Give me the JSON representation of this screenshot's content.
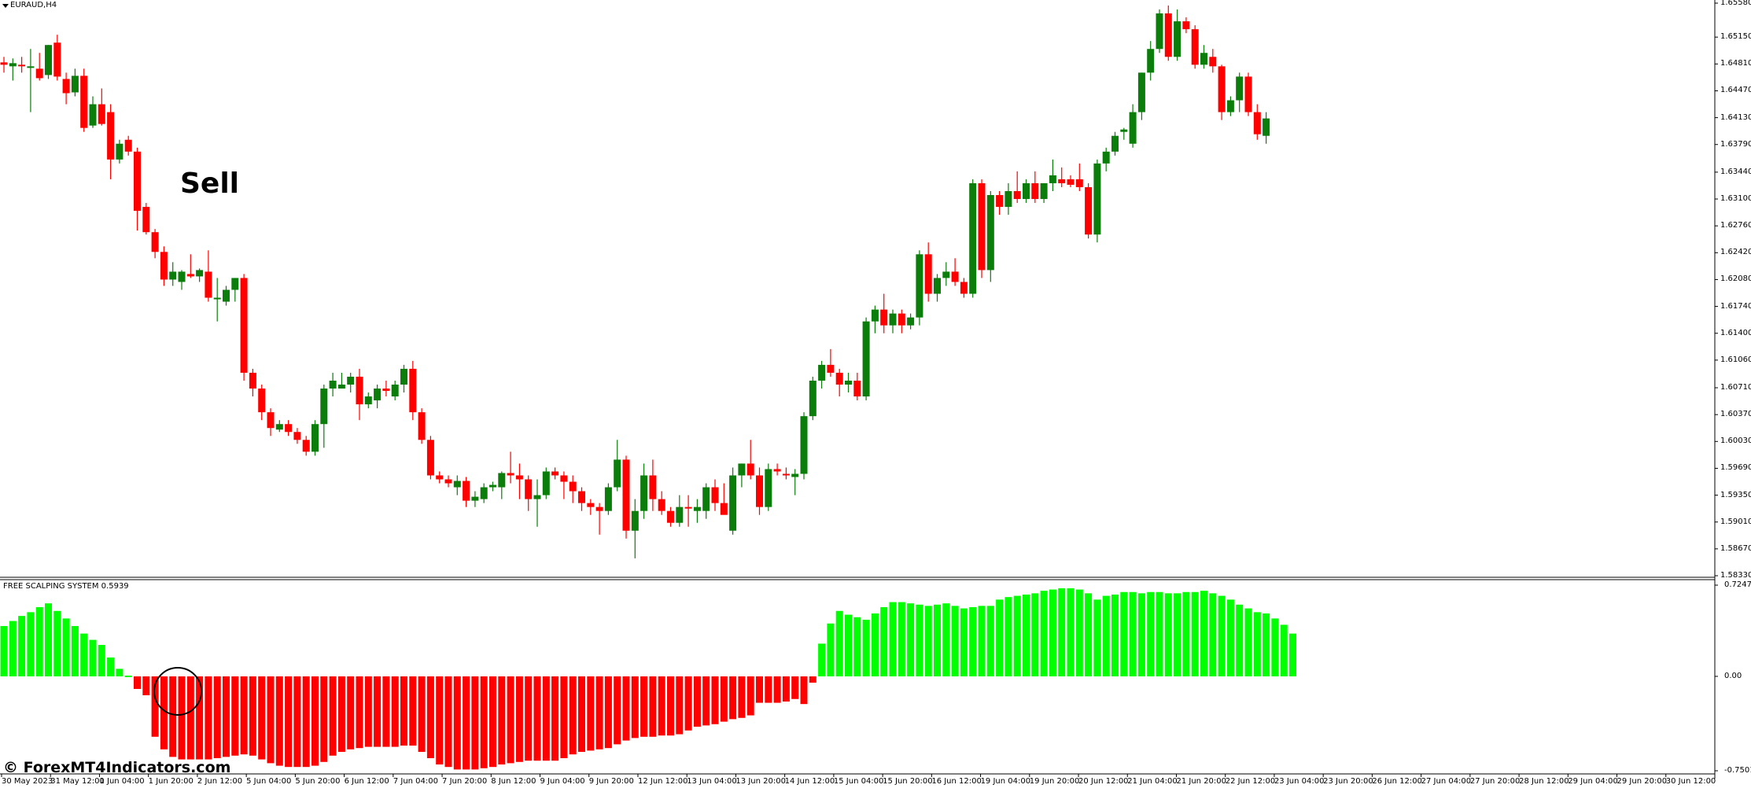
{
  "window": {
    "symbol_title": "EURAUD,H4",
    "indicator_title": "FREE SCALPING SYSTEM 0.5939"
  },
  "annotations": {
    "signal_label": "Sell",
    "watermark": "© ForexMT4Indicators.com"
  },
  "colors": {
    "bull": "#0b7d0b",
    "bear": "#ff0000",
    "osc_positive": "#00ff00",
    "osc_negative": "#ff0000",
    "axis": "#000000",
    "background": "#ffffff"
  },
  "price_axis": {
    "labels": [
      "1.65580",
      "1.65150",
      "1.64810",
      "1.64470",
      "1.64130",
      "1.63790",
      "1.63440",
      "1.63100",
      "1.62760",
      "1.62420",
      "1.62080",
      "1.61740",
      "1.61400",
      "1.61060",
      "1.60710",
      "1.60370",
      "1.60030",
      "1.59690",
      "1.59350",
      "1.59010",
      "1.58670",
      "1.58330"
    ],
    "min": 1.5833,
    "max": 1.6558
  },
  "osc_axis": {
    "labels": [
      "0.7247",
      "0.00",
      "-0.7501"
    ],
    "max": 0.7247,
    "min": -0.7501
  },
  "time_axis": {
    "labels": [
      "30 May 2023",
      "31 May 12:00",
      "1 Jun 04:00",
      "1 Jun 20:00",
      "2 Jun 12:00",
      "5 Jun 04:00",
      "5 Jun 20:00",
      "6 Jun 12:00",
      "7 Jun 04:00",
      "7 Jun 20:00",
      "8 Jun 12:00",
      "9 Jun 04:00",
      "9 Jun 20:00",
      "12 Jun 12:00",
      "13 Jun 04:00",
      "13 Jun 20:00",
      "14 Jun 12:00",
      "15 Jun 04:00",
      "15 Jun 20:00",
      "16 Jun 12:00",
      "19 Jun 04:00",
      "19 Jun 20:00",
      "20 Jun 12:00",
      "21 Jun 04:00",
      "21 Jun 20:00",
      "22 Jun 12:00",
      "23 Jun 04:00",
      "23 Jun 20:00",
      "26 Jun 12:00",
      "27 Jun 04:00",
      "27 Jun 20:00",
      "28 Jun 12:00",
      "29 Jun 04:00",
      "29 Jun 20:00",
      "30 Jun 12:00"
    ]
  },
  "chart_data": [
    {
      "type": "candlestick",
      "title": "EURAUD,H4",
      "ylim": [
        1.5833,
        1.6558
      ],
      "candles": [
        {
          "o": 1.6483,
          "h": 1.649,
          "l": 1.647,
          "c": 1.648
        },
        {
          "o": 1.6478,
          "h": 1.6488,
          "l": 1.646,
          "c": 1.6482
        },
        {
          "o": 1.648,
          "h": 1.649,
          "l": 1.647,
          "c": 1.6478
        },
        {
          "o": 1.6478,
          "h": 1.65,
          "l": 1.642,
          "c": 1.6478
        },
        {
          "o": 1.6475,
          "h": 1.6495,
          "l": 1.646,
          "c": 1.6463
        },
        {
          "o": 1.6467,
          "h": 1.6505,
          "l": 1.6462,
          "c": 1.6505
        },
        {
          "o": 1.6508,
          "h": 1.6518,
          "l": 1.646,
          "c": 1.6465
        },
        {
          "o": 1.6462,
          "h": 1.647,
          "l": 1.643,
          "c": 1.6444
        },
        {
          "o": 1.6445,
          "h": 1.6475,
          "l": 1.644,
          "c": 1.6466
        },
        {
          "o": 1.6466,
          "h": 1.6475,
          "l": 1.6395,
          "c": 1.64
        },
        {
          "o": 1.6403,
          "h": 1.644,
          "l": 1.64,
          "c": 1.643
        },
        {
          "o": 1.643,
          "h": 1.645,
          "l": 1.6403,
          "c": 1.6405
        },
        {
          "o": 1.642,
          "h": 1.643,
          "l": 1.6335,
          "c": 1.636
        },
        {
          "o": 1.636,
          "h": 1.6385,
          "l": 1.6355,
          "c": 1.638
        },
        {
          "o": 1.6385,
          "h": 1.639,
          "l": 1.6365,
          "c": 1.637
        },
        {
          "o": 1.637,
          "h": 1.6375,
          "l": 1.627,
          "c": 1.6295
        },
        {
          "o": 1.63,
          "h": 1.6305,
          "l": 1.6265,
          "c": 1.6268
        },
        {
          "o": 1.6268,
          "h": 1.6272,
          "l": 1.6235,
          "c": 1.6243
        },
        {
          "o": 1.6243,
          "h": 1.625,
          "l": 1.62,
          "c": 1.6208
        },
        {
          "o": 1.6208,
          "h": 1.623,
          "l": 1.62,
          "c": 1.6218
        },
        {
          "o": 1.6205,
          "h": 1.622,
          "l": 1.6195,
          "c": 1.6218
        },
        {
          "o": 1.6215,
          "h": 1.624,
          "l": 1.621,
          "c": 1.6212
        },
        {
          "o": 1.6212,
          "h": 1.6222,
          "l": 1.6205,
          "c": 1.622
        },
        {
          "o": 1.6218,
          "h": 1.6245,
          "l": 1.618,
          "c": 1.6185
        },
        {
          "o": 1.6185,
          "h": 1.621,
          "l": 1.6155,
          "c": 1.6185
        },
        {
          "o": 1.618,
          "h": 1.62,
          "l": 1.6175,
          "c": 1.6195
        },
        {
          "o": 1.6195,
          "h": 1.621,
          "l": 1.618,
          "c": 1.621
        },
        {
          "o": 1.621,
          "h": 1.6215,
          "l": 1.608,
          "c": 1.609
        },
        {
          "o": 1.609,
          "h": 1.6095,
          "l": 1.606,
          "c": 1.607
        },
        {
          "o": 1.607,
          "h": 1.6075,
          "l": 1.603,
          "c": 1.604
        },
        {
          "o": 1.604,
          "h": 1.6045,
          "l": 1.601,
          "c": 1.602
        },
        {
          "o": 1.6018,
          "h": 1.603,
          "l": 1.6015,
          "c": 1.6025
        },
        {
          "o": 1.6025,
          "h": 1.603,
          "l": 1.601,
          "c": 1.6015
        },
        {
          "o": 1.6015,
          "h": 1.602,
          "l": 1.6,
          "c": 1.6005
        },
        {
          "o": 1.6005,
          "h": 1.601,
          "l": 1.5985,
          "c": 1.599
        },
        {
          "o": 1.599,
          "h": 1.603,
          "l": 1.5985,
          "c": 1.6025
        },
        {
          "o": 1.6025,
          "h": 1.6075,
          "l": 1.5995,
          "c": 1.607
        },
        {
          "o": 1.607,
          "h": 1.609,
          "l": 1.606,
          "c": 1.608
        },
        {
          "o": 1.607,
          "h": 1.609,
          "l": 1.607,
          "c": 1.6075
        },
        {
          "o": 1.6075,
          "h": 1.609,
          "l": 1.6065,
          "c": 1.6085
        },
        {
          "o": 1.6085,
          "h": 1.6095,
          "l": 1.603,
          "c": 1.605
        },
        {
          "o": 1.605,
          "h": 1.6065,
          "l": 1.6045,
          "c": 1.606
        },
        {
          "o": 1.6055,
          "h": 1.6075,
          "l": 1.6045,
          "c": 1.607
        },
        {
          "o": 1.607,
          "h": 1.608,
          "l": 1.606,
          "c": 1.6067
        },
        {
          "o": 1.606,
          "h": 1.608,
          "l": 1.6055,
          "c": 1.6075
        },
        {
          "o": 1.6075,
          "h": 1.61,
          "l": 1.6065,
          "c": 1.6095
        },
        {
          "o": 1.6095,
          "h": 1.6105,
          "l": 1.603,
          "c": 1.604
        },
        {
          "o": 1.604,
          "h": 1.6045,
          "l": 1.6,
          "c": 1.6005
        },
        {
          "o": 1.6005,
          "h": 1.601,
          "l": 1.5955,
          "c": 1.596
        },
        {
          "o": 1.596,
          "h": 1.5965,
          "l": 1.595,
          "c": 1.5955
        },
        {
          "o": 1.5955,
          "h": 1.596,
          "l": 1.5945,
          "c": 1.595
        },
        {
          "o": 1.5945,
          "h": 1.596,
          "l": 1.5935,
          "c": 1.5953
        },
        {
          "o": 1.5953,
          "h": 1.5958,
          "l": 1.592,
          "c": 1.5928
        },
        {
          "o": 1.5928,
          "h": 1.594,
          "l": 1.592,
          "c": 1.5933
        },
        {
          "o": 1.593,
          "h": 1.595,
          "l": 1.5925,
          "c": 1.5945
        },
        {
          "o": 1.5945,
          "h": 1.5952,
          "l": 1.594,
          "c": 1.5948
        },
        {
          "o": 1.5945,
          "h": 1.5965,
          "l": 1.593,
          "c": 1.5963
        },
        {
          "o": 1.5963,
          "h": 1.599,
          "l": 1.595,
          "c": 1.596
        },
        {
          "o": 1.596,
          "h": 1.5975,
          "l": 1.593,
          "c": 1.5955
        },
        {
          "o": 1.5955,
          "h": 1.596,
          "l": 1.5915,
          "c": 1.593
        },
        {
          "o": 1.593,
          "h": 1.5955,
          "l": 1.5895,
          "c": 1.5935
        },
        {
          "o": 1.5935,
          "h": 1.597,
          "l": 1.593,
          "c": 1.5965
        },
        {
          "o": 1.5965,
          "h": 1.597,
          "l": 1.5955,
          "c": 1.596
        },
        {
          "o": 1.596,
          "h": 1.5965,
          "l": 1.593,
          "c": 1.5952
        },
        {
          "o": 1.5952,
          "h": 1.596,
          "l": 1.5925,
          "c": 1.594
        },
        {
          "o": 1.594,
          "h": 1.5945,
          "l": 1.5915,
          "c": 1.5925
        },
        {
          "o": 1.5925,
          "h": 1.593,
          "l": 1.591,
          "c": 1.592
        },
        {
          "o": 1.592,
          "h": 1.5925,
          "l": 1.5885,
          "c": 1.5915
        },
        {
          "o": 1.5915,
          "h": 1.595,
          "l": 1.591,
          "c": 1.5945
        },
        {
          "o": 1.5945,
          "h": 1.6005,
          "l": 1.594,
          "c": 1.598
        },
        {
          "o": 1.598,
          "h": 1.5985,
          "l": 1.588,
          "c": 1.589
        },
        {
          "o": 1.589,
          "h": 1.593,
          "l": 1.5855,
          "c": 1.5915
        },
        {
          "o": 1.5915,
          "h": 1.5975,
          "l": 1.5905,
          "c": 1.596
        },
        {
          "o": 1.596,
          "h": 1.598,
          "l": 1.5915,
          "c": 1.593
        },
        {
          "o": 1.593,
          "h": 1.594,
          "l": 1.591,
          "c": 1.5915
        },
        {
          "o": 1.5915,
          "h": 1.592,
          "l": 1.5895,
          "c": 1.59
        },
        {
          "o": 1.59,
          "h": 1.5935,
          "l": 1.5895,
          "c": 1.592
        },
        {
          "o": 1.592,
          "h": 1.5935,
          "l": 1.5895,
          "c": 1.5918
        },
        {
          "o": 1.5915,
          "h": 1.593,
          "l": 1.59,
          "c": 1.592
        },
        {
          "o": 1.5915,
          "h": 1.595,
          "l": 1.5905,
          "c": 1.5945
        },
        {
          "o": 1.5945,
          "h": 1.5955,
          "l": 1.5915,
          "c": 1.5925
        },
        {
          "o": 1.5925,
          "h": 1.595,
          "l": 1.5915,
          "c": 1.591
        },
        {
          "o": 1.589,
          "h": 1.597,
          "l": 1.5885,
          "c": 1.596
        },
        {
          "o": 1.596,
          "h": 1.5975,
          "l": 1.5945,
          "c": 1.5975
        },
        {
          "o": 1.5975,
          "h": 1.6005,
          "l": 1.5955,
          "c": 1.596
        },
        {
          "o": 1.596,
          "h": 1.597,
          "l": 1.591,
          "c": 1.592
        },
        {
          "o": 1.592,
          "h": 1.5975,
          "l": 1.5915,
          "c": 1.5968
        },
        {
          "o": 1.5968,
          "h": 1.5975,
          "l": 1.596,
          "c": 1.5965
        },
        {
          "o": 1.5962,
          "h": 1.597,
          "l": 1.5955,
          "c": 1.596
        },
        {
          "o": 1.5958,
          "h": 1.5968,
          "l": 1.5935,
          "c": 1.5962
        },
        {
          "o": 1.5962,
          "h": 1.604,
          "l": 1.5955,
          "c": 1.6035
        },
        {
          "o": 1.6035,
          "h": 1.6085,
          "l": 1.603,
          "c": 1.608
        },
        {
          "o": 1.608,
          "h": 1.6105,
          "l": 1.607,
          "c": 1.61
        },
        {
          "o": 1.61,
          "h": 1.612,
          "l": 1.6085,
          "c": 1.609
        },
        {
          "o": 1.609,
          "h": 1.6095,
          "l": 1.606,
          "c": 1.6075
        },
        {
          "o": 1.6075,
          "h": 1.609,
          "l": 1.6065,
          "c": 1.608
        },
        {
          "o": 1.608,
          "h": 1.609,
          "l": 1.6055,
          "c": 1.606
        },
        {
          "o": 1.606,
          "h": 1.616,
          "l": 1.6055,
          "c": 1.6155
        },
        {
          "o": 1.6155,
          "h": 1.6175,
          "l": 1.614,
          "c": 1.617
        },
        {
          "o": 1.617,
          "h": 1.619,
          "l": 1.614,
          "c": 1.615
        },
        {
          "o": 1.615,
          "h": 1.617,
          "l": 1.614,
          "c": 1.6165
        },
        {
          "o": 1.6165,
          "h": 1.617,
          "l": 1.614,
          "c": 1.615
        },
        {
          "o": 1.615,
          "h": 1.6165,
          "l": 1.6145,
          "c": 1.616
        },
        {
          "o": 1.616,
          "h": 1.6245,
          "l": 1.615,
          "c": 1.624
        },
        {
          "o": 1.624,
          "h": 1.6255,
          "l": 1.618,
          "c": 1.619
        },
        {
          "o": 1.619,
          "h": 1.6215,
          "l": 1.618,
          "c": 1.621
        },
        {
          "o": 1.621,
          "h": 1.623,
          "l": 1.62,
          "c": 1.6218
        },
        {
          "o": 1.6218,
          "h": 1.6235,
          "l": 1.62,
          "c": 1.6205
        },
        {
          "o": 1.6205,
          "h": 1.621,
          "l": 1.6185,
          "c": 1.619
        },
        {
          "o": 1.619,
          "h": 1.6335,
          "l": 1.6185,
          "c": 1.633
        },
        {
          "o": 1.633,
          "h": 1.6335,
          "l": 1.621,
          "c": 1.622
        },
        {
          "o": 1.622,
          "h": 1.632,
          "l": 1.6205,
          "c": 1.6315
        },
        {
          "o": 1.6315,
          "h": 1.632,
          "l": 1.629,
          "c": 1.63
        },
        {
          "o": 1.63,
          "h": 1.633,
          "l": 1.629,
          "c": 1.632
        },
        {
          "o": 1.632,
          "h": 1.6345,
          "l": 1.6305,
          "c": 1.631
        },
        {
          "o": 1.631,
          "h": 1.6335,
          "l": 1.6305,
          "c": 1.633
        },
        {
          "o": 1.633,
          "h": 1.6345,
          "l": 1.6305,
          "c": 1.631
        },
        {
          "o": 1.631,
          "h": 1.633,
          "l": 1.6305,
          "c": 1.633
        },
        {
          "o": 1.633,
          "h": 1.636,
          "l": 1.632,
          "c": 1.634
        },
        {
          "o": 1.6335,
          "h": 1.635,
          "l": 1.6325,
          "c": 1.633
        },
        {
          "o": 1.6335,
          "h": 1.634,
          "l": 1.6325,
          "c": 1.6328
        },
        {
          "o": 1.6335,
          "h": 1.6355,
          "l": 1.632,
          "c": 1.6325
        },
        {
          "o": 1.6325,
          "h": 1.633,
          "l": 1.626,
          "c": 1.6265
        },
        {
          "o": 1.6265,
          "h": 1.636,
          "l": 1.6255,
          "c": 1.6355
        },
        {
          "o": 1.6355,
          "h": 1.6375,
          "l": 1.6345,
          "c": 1.637
        },
        {
          "o": 1.637,
          "h": 1.6395,
          "l": 1.6365,
          "c": 1.639
        },
        {
          "o": 1.6395,
          "h": 1.64,
          "l": 1.6385,
          "c": 1.6398
        },
        {
          "o": 1.638,
          "h": 1.643,
          "l": 1.6375,
          "c": 1.642
        },
        {
          "o": 1.642,
          "h": 1.647,
          "l": 1.641,
          "c": 1.647
        },
        {
          "o": 1.647,
          "h": 1.651,
          "l": 1.646,
          "c": 1.65
        },
        {
          "o": 1.65,
          "h": 1.655,
          "l": 1.6495,
          "c": 1.6545
        },
        {
          "o": 1.6545,
          "h": 1.6555,
          "l": 1.6485,
          "c": 1.649
        },
        {
          "o": 1.649,
          "h": 1.655,
          "l": 1.6485,
          "c": 1.6535
        },
        {
          "o": 1.6535,
          "h": 1.654,
          "l": 1.652,
          "c": 1.6525
        },
        {
          "o": 1.6525,
          "h": 1.653,
          "l": 1.6475,
          "c": 1.648
        },
        {
          "o": 1.648,
          "h": 1.6505,
          "l": 1.6475,
          "c": 1.6495
        },
        {
          "o": 1.649,
          "h": 1.65,
          "l": 1.647,
          "c": 1.6478
        },
        {
          "o": 1.6478,
          "h": 1.648,
          "l": 1.641,
          "c": 1.642
        },
        {
          "o": 1.642,
          "h": 1.644,
          "l": 1.6415,
          "c": 1.6435
        },
        {
          "o": 1.6435,
          "h": 1.647,
          "l": 1.642,
          "c": 1.6465
        },
        {
          "o": 1.6465,
          "h": 1.647,
          "l": 1.6415,
          "c": 1.642
        },
        {
          "o": 1.642,
          "h": 1.643,
          "l": 1.6385,
          "c": 1.6392
        },
        {
          "o": 1.639,
          "h": 1.642,
          "l": 1.638,
          "c": 1.6412
        }
      ]
    },
    {
      "type": "bar",
      "title": "FREE SCALPING SYSTEM 0.5939",
      "ylim": [
        -0.7501,
        0.7247
      ],
      "values": [
        0.4,
        0.44,
        0.48,
        0.51,
        0.55,
        0.58,
        0.52,
        0.46,
        0.4,
        0.34,
        0.29,
        0.25,
        0.15,
        0.06,
        0.0,
        -0.1,
        -0.15,
        -0.48,
        -0.58,
        -0.64,
        -0.66,
        -0.66,
        -0.66,
        -0.66,
        -0.65,
        -0.64,
        -0.63,
        -0.62,
        -0.63,
        -0.66,
        -0.69,
        -0.71,
        -0.72,
        -0.72,
        -0.72,
        -0.71,
        -0.68,
        -0.63,
        -0.6,
        -0.58,
        -0.57,
        -0.56,
        -0.56,
        -0.56,
        -0.56,
        -0.55,
        -0.55,
        -0.6,
        -0.65,
        -0.7,
        -0.72,
        -0.74,
        -0.74,
        -0.74,
        -0.73,
        -0.72,
        -0.7,
        -0.69,
        -0.68,
        -0.67,
        -0.67,
        -0.67,
        -0.67,
        -0.65,
        -0.62,
        -0.6,
        -0.59,
        -0.58,
        -0.57,
        -0.54,
        -0.51,
        -0.49,
        -0.48,
        -0.48,
        -0.47,
        -0.47,
        -0.46,
        -0.43,
        -0.4,
        -0.39,
        -0.38,
        -0.36,
        -0.34,
        -0.33,
        -0.31,
        -0.21,
        -0.21,
        -0.21,
        -0.2,
        -0.18,
        -0.22,
        -0.05,
        0.26,
        0.42,
        0.52,
        0.49,
        0.47,
        0.45,
        0.5,
        0.55,
        0.59,
        0.59,
        0.58,
        0.57,
        0.56,
        0.57,
        0.58,
        0.56,
        0.54,
        0.55,
        0.56,
        0.56,
        0.61,
        0.63,
        0.64,
        0.65,
        0.66,
        0.68,
        0.69,
        0.7,
        0.7,
        0.69,
        0.66,
        0.61,
        0.64,
        0.65,
        0.67,
        0.67,
        0.66,
        0.67,
        0.67,
        0.66,
        0.66,
        0.67,
        0.67,
        0.68,
        0.66,
        0.64,
        0.61,
        0.57,
        0.54,
        0.51,
        0.5,
        0.46,
        0.41,
        0.34
      ]
    }
  ]
}
